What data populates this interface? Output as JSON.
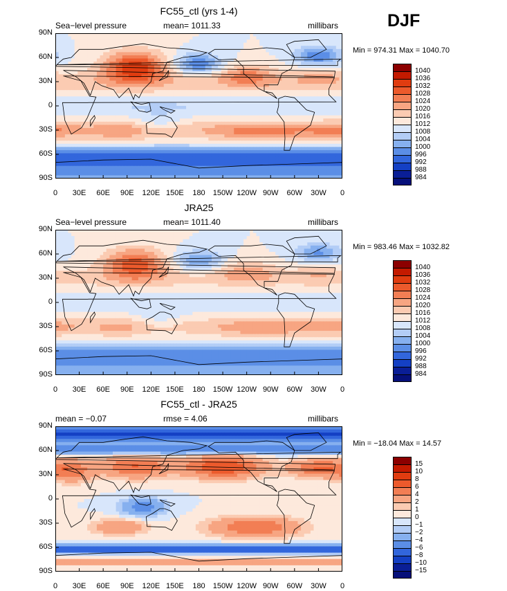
{
  "season": "DJF",
  "lon_labels": [
    "0",
    "30E",
    "60E",
    "90E",
    "120E",
    "150E",
    "180",
    "150W",
    "120W",
    "90W",
    "60W",
    "30W",
    "0"
  ],
  "lat_labels": [
    "90N",
    "60N",
    "30N",
    "0",
    "30S",
    "60S",
    "90S"
  ],
  "panels": [
    {
      "title": "FC55_ctl (yrs 1-4)",
      "left": "Sea−level pressure",
      "center": "mean= 1011.33",
      "right": "millibars",
      "minmax": "Min = 974.31 Max = 1040.70",
      "levels": [
        "1040",
        "1036",
        "1032",
        "1028",
        "1024",
        "1020",
        "1016",
        "1012",
        "1008",
        "1004",
        "1000",
        "996",
        "992",
        "988",
        "984"
      ],
      "field": "ctl"
    },
    {
      "title": "JRA25",
      "left": "Sea−level pressure",
      "center": "mean= 1011.40",
      "right": "millibars",
      "minmax": "Min = 983.46 Max = 1032.82",
      "levels": [
        "1040",
        "1036",
        "1032",
        "1028",
        "1024",
        "1020",
        "1016",
        "1012",
        "1008",
        "1004",
        "1000",
        "996",
        "992",
        "988",
        "984"
      ],
      "field": "obs"
    },
    {
      "title": "FC55_ctl - JRA25",
      "left": "mean =   −0.07",
      "center": "rmse =    4.06",
      "right": "millibars",
      "minmax": "Min = −18.04 Max =  14.57",
      "levels": [
        "15",
        "10",
        "8",
        "6",
        "4",
        "2",
        "1",
        "0",
        "−1",
        "−2",
        "−4",
        "−6",
        "−8",
        "−10",
        "−15"
      ],
      "field": "diff"
    }
  ],
  "colors": [
    "#8c0000",
    "#c41a00",
    "#e03c10",
    "#ec5a2c",
    "#f27e54",
    "#f7a582",
    "#fbcbb2",
    "#fde9dc",
    "#d8e6fb",
    "#b3cdf6",
    "#86b0ef",
    "#5b8ee6",
    "#3266dc",
    "#1440c4",
    "#0a1e96",
    "#06107a"
  ]
}
